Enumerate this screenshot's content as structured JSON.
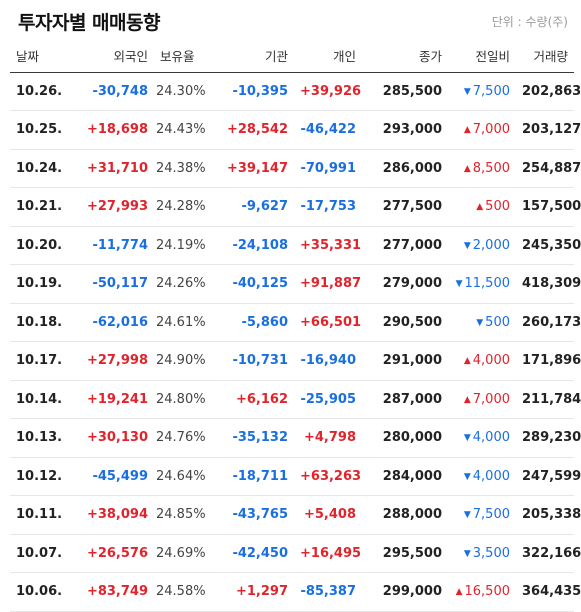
{
  "header": {
    "title": "투자자별 매매동향",
    "unit": "단위 : 수량(주)"
  },
  "columns": {
    "date": "날짜",
    "foreign": "외국인",
    "holding": "보유율",
    "institution": "기관",
    "individual": "개인",
    "close": "종가",
    "change": "전일비",
    "volume": "거래량"
  },
  "colors": {
    "up": "#e0242c",
    "down": "#1a6fe0"
  },
  "rows": [
    {
      "date": "10.26.",
      "foreign": "-30,748",
      "holding": "24.30%",
      "institution": "-10,395",
      "individual": "+39,926",
      "close": "285,500",
      "change_dir": "down",
      "change": "7,500",
      "volume": "202,863"
    },
    {
      "date": "10.25.",
      "foreign": "+18,698",
      "holding": "24.43%",
      "institution": "+28,542",
      "individual": "-46,422",
      "close": "293,000",
      "change_dir": "up",
      "change": "7,000",
      "volume": "203,127"
    },
    {
      "date": "10.24.",
      "foreign": "+31,710",
      "holding": "24.38%",
      "institution": "+39,147",
      "individual": "-70,991",
      "close": "286,000",
      "change_dir": "up",
      "change": "8,500",
      "volume": "254,887"
    },
    {
      "date": "10.21.",
      "foreign": "+27,993",
      "holding": "24.28%",
      "institution": "-9,627",
      "individual": "-17,753",
      "close": "277,500",
      "change_dir": "up",
      "change": "500",
      "volume": "157,500"
    },
    {
      "date": "10.20.",
      "foreign": "-11,774",
      "holding": "24.19%",
      "institution": "-24,108",
      "individual": "+35,331",
      "close": "277,000",
      "change_dir": "down",
      "change": "2,000",
      "volume": "245,350"
    },
    {
      "date": "10.19.",
      "foreign": "-50,117",
      "holding": "24.26%",
      "institution": "-40,125",
      "individual": "+91,887",
      "close": "279,000",
      "change_dir": "down",
      "change": "11,500",
      "volume": "418,309"
    },
    {
      "date": "10.18.",
      "foreign": "-62,016",
      "holding": "24.61%",
      "institution": "-5,860",
      "individual": "+66,501",
      "close": "290,500",
      "change_dir": "down",
      "change": "500",
      "volume": "260,173"
    },
    {
      "date": "10.17.",
      "foreign": "+27,998",
      "holding": "24.90%",
      "institution": "-10,731",
      "individual": "-16,940",
      "close": "291,000",
      "change_dir": "up",
      "change": "4,000",
      "volume": "171,896"
    },
    {
      "date": "10.14.",
      "foreign": "+19,241",
      "holding": "24.80%",
      "institution": "+6,162",
      "individual": "-25,905",
      "close": "287,000",
      "change_dir": "up",
      "change": "7,000",
      "volume": "211,784"
    },
    {
      "date": "10.13.",
      "foreign": "+30,130",
      "holding": "24.76%",
      "institution": "-35,132",
      "individual": "+4,798",
      "close": "280,000",
      "change_dir": "down",
      "change": "4,000",
      "volume": "289,230"
    },
    {
      "date": "10.12.",
      "foreign": "-45,499",
      "holding": "24.64%",
      "institution": "-18,711",
      "individual": "+63,263",
      "close": "284,000",
      "change_dir": "down",
      "change": "4,000",
      "volume": "247,599"
    },
    {
      "date": "10.11.",
      "foreign": "+38,094",
      "holding": "24.85%",
      "institution": "-43,765",
      "individual": "+5,408",
      "close": "288,000",
      "change_dir": "down",
      "change": "7,500",
      "volume": "205,338"
    },
    {
      "date": "10.07.",
      "foreign": "+26,576",
      "holding": "24.69%",
      "institution": "-42,450",
      "individual": "+16,495",
      "close": "295,500",
      "change_dir": "down",
      "change": "3,500",
      "volume": "322,166"
    },
    {
      "date": "10.06.",
      "foreign": "+83,749",
      "holding": "24.58%",
      "institution": "+1,297",
      "individual": "-85,387",
      "close": "299,000",
      "change_dir": "up",
      "change": "16,500",
      "volume": "364,435"
    }
  ]
}
